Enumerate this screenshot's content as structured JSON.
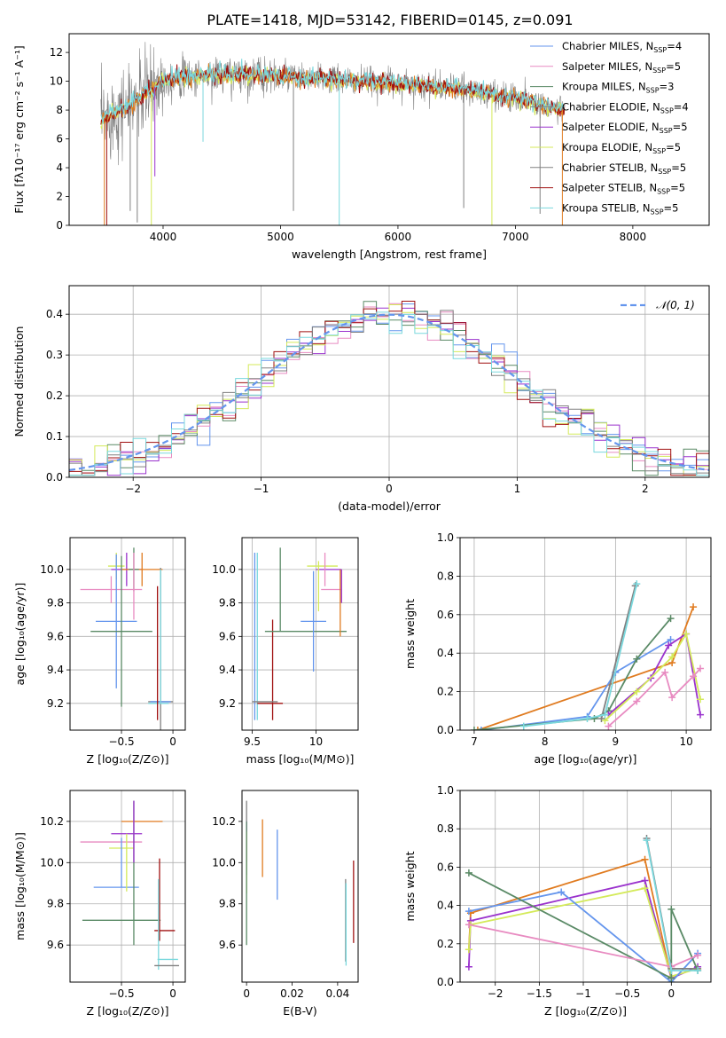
{
  "title": "PLATE=1418, MJD=53142, FIBERID=0145, z=0.091",
  "palette": {
    "blue": "#6495ed",
    "pink": "#e88bc1",
    "green": "#5a8a66",
    "purple": "#9a32cd",
    "yellow": "#d4ea5a",
    "orange": "#e07b20",
    "gray": "#808080",
    "red": "#a01010",
    "cyan": "#7ad8dd"
  },
  "chart_data": [
    {
      "id": "spectrum",
      "type": "line",
      "xlabel": "wavelength [Angstrom, rest frame]",
      "ylabel": "Flux [fλ10⁻¹⁷ erg cm⁻² s⁻¹ A⁻¹]",
      "xlim": [
        3200,
        8650
      ],
      "ylim": [
        0,
        13.3
      ],
      "xticks": [
        4000,
        5000,
        6000,
        7000,
        8000
      ],
      "yticks": [
        0,
        2,
        4,
        6,
        8,
        10,
        12
      ],
      "legend_position": "right",
      "legend": [
        {
          "label": "Chabrier MILES, N",
          "sub": "SSP",
          "eq": "=4",
          "color": "blue"
        },
        {
          "label": "Salpeter MILES, N",
          "sub": "SSP",
          "eq": "=5",
          "color": "pink"
        },
        {
          "label": "Kroupa MILES, N",
          "sub": "SSP",
          "eq": "=3",
          "color": "green"
        },
        {
          "label": "Chabrier ELODIE, N",
          "sub": "SSP",
          "eq": "=4",
          "color": "gray"
        },
        {
          "label": "Salpeter ELODIE, N",
          "sub": "SSP",
          "eq": "=5",
          "color": "purple"
        },
        {
          "label": "Kroupa ELODIE, N",
          "sub": "SSP",
          "eq": "=5",
          "color": "yellow"
        },
        {
          "label": "Chabrier STELIB, N",
          "sub": "SSP",
          "eq": "=5",
          "color": "gray"
        },
        {
          "label": "Salpeter STELIB, N",
          "sub": "SSP",
          "eq": "=5",
          "color": "red"
        },
        {
          "label": "Kroupa STELIB, N",
          "sub": "SSP",
          "eq": "=5",
          "color": "cyan"
        }
      ],
      "continuum": [
        [
          3470,
          7.2
        ],
        [
          3530,
          7.6
        ],
        [
          3600,
          7.9
        ],
        [
          3700,
          8.2
        ],
        [
          3800,
          8.9
        ],
        [
          3900,
          9.4
        ],
        [
          4000,
          10.1
        ],
        [
          4200,
          10.3
        ],
        [
          4400,
          10.4
        ],
        [
          4700,
          10.5
        ],
        [
          5000,
          10.3
        ],
        [
          5300,
          10.2
        ],
        [
          5600,
          10.0
        ],
        [
          5900,
          9.9
        ],
        [
          6200,
          9.7
        ],
        [
          6500,
          9.5
        ],
        [
          6800,
          9.1
        ],
        [
          7100,
          8.7
        ],
        [
          7300,
          8.2
        ],
        [
          7420,
          8.0
        ]
      ],
      "dips": [
        {
          "x": 3500,
          "y": 0,
          "color": "orange"
        },
        {
          "x": 3520,
          "y": 0,
          "color": "red"
        },
        {
          "x": 3720,
          "y": 1.0,
          "color": "gray"
        },
        {
          "x": 3780,
          "y": 0.2,
          "color": "gray"
        },
        {
          "x": 3900,
          "y": 0,
          "color": "yellow"
        },
        {
          "x": 3930,
          "y": 3.4,
          "color": "purple"
        },
        {
          "x": 4340,
          "y": 5.8,
          "color": "cyan"
        },
        {
          "x": 5110,
          "y": 1.0,
          "color": "gray"
        },
        {
          "x": 5500,
          "y": 0,
          "color": "cyan"
        },
        {
          "x": 6560,
          "y": 1.2,
          "color": "gray"
        },
        {
          "x": 6800,
          "y": 0,
          "color": "yellow"
        },
        {
          "x": 7210,
          "y": 0.8,
          "color": "gray"
        },
        {
          "x": 7400,
          "y": 0,
          "color": "orange"
        }
      ]
    },
    {
      "id": "residuals",
      "type": "histogram",
      "xlabel": "(data-model)/error",
      "ylabel": "Normed distribution",
      "xlim": [
        -2.5,
        2.5
      ],
      "ylim": [
        0,
        0.47
      ],
      "xticks": [
        -2,
        -1,
        0,
        1,
        2
      ],
      "yticks": [
        0.0,
        0.1,
        0.2,
        0.3,
        0.4
      ],
      "grid": true,
      "bin_width": 0.1,
      "legend_position": "top-right",
      "legend": [
        {
          "label": "𝒩(0, 1)",
          "color": "blue",
          "dashed": true
        }
      ],
      "histogram_colors": [
        "blue",
        "pink",
        "green",
        "purple",
        "yellow",
        "red",
        "gray",
        "cyan"
      ]
    },
    {
      "id": "age_vs_Z",
      "type": "errorbar",
      "xlabel": "Z [log₁₀(Z/Z⊙)]",
      "ylabel": "age  [log₁₀(age/yr)]",
      "xlim": [
        -1.0,
        0.12
      ],
      "ylim": [
        9.04,
        10.19
      ],
      "xticks": [
        -0.5,
        0.0
      ],
      "yticks": [
        9.2,
        9.4,
        9.6,
        9.8,
        10.0
      ],
      "grid": true,
      "points": [
        {
          "x": -0.55,
          "y": 10.02,
          "xerr": 0.08,
          "yerr": 0.08,
          "color": "yellow"
        },
        {
          "x": -0.45,
          "y": 10.0,
          "xerr": 0.15,
          "yerr": 0.1,
          "color": "purple"
        },
        {
          "x": -0.3,
          "y": 10.0,
          "xerr": 0.2,
          "yerr": 0.1,
          "color": "orange"
        },
        {
          "x": -0.38,
          "y": 10.0,
          "xerr": 0.05,
          "yerr": 0.13,
          "color": "green"
        },
        {
          "x": -0.6,
          "y": 9.88,
          "xerr": 0.3,
          "yerr": 0.08,
          "color": "pink"
        },
        {
          "x": -0.55,
          "y": 9.69,
          "xerr": 0.2,
          "yerr": 0.4,
          "color": "blue"
        },
        {
          "x": -0.5,
          "y": 9.63,
          "xerr": 0.3,
          "yerr": 0.45,
          "color": "green"
        },
        {
          "x": -0.38,
          "y": 9.9,
          "xerr": 0.0,
          "yerr": 0.2,
          "color": "pink"
        },
        {
          "x": -0.12,
          "y": 9.21,
          "xerr": 0.12,
          "yerr": 0.8,
          "color": "gray"
        },
        {
          "x": -0.12,
          "y": 9.21,
          "xerr": 0.1,
          "yerr": 0.0,
          "color": "blue"
        },
        {
          "x": -0.14,
          "y": 9.2,
          "xerr": 0.1,
          "yerr": 0.0,
          "color": "cyan"
        },
        {
          "x": -0.15,
          "y": 9.5,
          "xerr": 0.0,
          "yerr": 0.4,
          "color": "red"
        },
        {
          "x": -0.12,
          "y": 9.6,
          "xerr": 0.0,
          "yerr": 0.4,
          "color": "cyan"
        }
      ]
    },
    {
      "id": "age_vs_mass",
      "type": "errorbar",
      "xlabel": "mass [log₁₀(M/M⊙)]",
      "ylabel": "",
      "xlim": [
        9.42,
        10.33
      ],
      "ylim": [
        9.04,
        10.19
      ],
      "xticks": [
        9.5,
        10.0
      ],
      "yticks": [
        9.2,
        9.4,
        9.6,
        9.8,
        10.0
      ],
      "grid": true,
      "points": [
        {
          "x": 9.52,
          "y": 9.6,
          "xerr": 0.0,
          "yerr": 0.5,
          "color": "blue"
        },
        {
          "x": 9.54,
          "y": 9.6,
          "xerr": 0.0,
          "yerr": 0.5,
          "color": "cyan"
        },
        {
          "x": 9.66,
          "y": 9.4,
          "xerr": 0.0,
          "yerr": 0.3,
          "color": "red"
        },
        {
          "x": 9.6,
          "y": 9.21,
          "xerr": 0.1,
          "yerr": 0.0,
          "color": "gray"
        },
        {
          "x": 9.64,
          "y": 9.2,
          "xerr": 0.1,
          "yerr": 0.0,
          "color": "red"
        },
        {
          "x": 9.72,
          "y": 9.88,
          "xerr": 0.0,
          "yerr": 0.25,
          "color": "green"
        },
        {
          "x": 9.92,
          "y": 9.63,
          "xerr": 0.32,
          "yerr": 0.0,
          "color": "green"
        },
        {
          "x": 10.05,
          "y": 10.02,
          "xerr": 0.12,
          "yerr": 0.0,
          "color": "yellow"
        },
        {
          "x": 10.1,
          "y": 10.0,
          "xerr": 0.1,
          "yerr": 0.0,
          "color": "purple"
        },
        {
          "x": 10.12,
          "y": 9.88,
          "xerr": 0.08,
          "yerr": 0.0,
          "color": "pink"
        },
        {
          "x": 10.07,
          "y": 10.0,
          "xerr": 0.0,
          "yerr": 0.1,
          "color": "pink"
        },
        {
          "x": 9.98,
          "y": 9.69,
          "xerr": 0.1,
          "yerr": 0.3,
          "color": "blue"
        },
        {
          "x": 10.19,
          "y": 9.8,
          "xerr": 0.0,
          "yerr": 0.2,
          "color": "orange"
        },
        {
          "x": 10.02,
          "y": 9.9,
          "xerr": 0.0,
          "yerr": 0.15,
          "color": "yellow"
        },
        {
          "x": 10.2,
          "y": 9.9,
          "xerr": 0.0,
          "yerr": 0.1,
          "color": "purple"
        }
      ]
    },
    {
      "id": "weight_vs_age",
      "type": "line",
      "xlabel": "age  [log₁₀(age/yr)]",
      "ylabel": "mass weight",
      "xlim": [
        6.8,
        10.35
      ],
      "ylim": [
        0,
        1.0
      ],
      "xticks": [
        7,
        8,
        9,
        10
      ],
      "yticks": [
        0.0,
        0.2,
        0.4,
        0.6,
        0.8,
        1.0
      ],
      "grid": true,
      "series": [
        {
          "color": "orange",
          "x": [
            7.05,
            9.8,
            10.1
          ],
          "y": [
            0.0,
            0.35,
            0.64
          ]
        },
        {
          "color": "blue",
          "x": [
            7.1,
            8.6,
            9.0,
            9.78
          ],
          "y": [
            0.0,
            0.07,
            0.3,
            0.47
          ]
        },
        {
          "color": "green",
          "x": [
            7.0,
            8.7,
            8.9,
            9.3,
            9.78
          ],
          "y": [
            0.0,
            0.06,
            0.1,
            0.37,
            0.58
          ]
        },
        {
          "color": "purple",
          "x": [
            8.9,
            9.5,
            9.75,
            10.0,
            10.2
          ],
          "y": [
            0.08,
            0.27,
            0.44,
            0.5,
            0.08
          ]
        },
        {
          "color": "yellow",
          "x": [
            8.85,
            9.3,
            9.8,
            10.0,
            10.2
          ],
          "y": [
            0.05,
            0.2,
            0.38,
            0.5,
            0.16
          ]
        },
        {
          "color": "pink",
          "x": [
            8.9,
            9.3,
            9.7,
            9.8,
            10.1,
            10.2
          ],
          "y": [
            0.02,
            0.15,
            0.3,
            0.17,
            0.28,
            0.32
          ]
        },
        {
          "color": "gray",
          "x": [
            8.8,
            9.28
          ],
          "y": [
            0.06,
            0.75
          ]
        },
        {
          "color": "cyan",
          "x": [
            7.7,
            8.6,
            8.85,
            9.3
          ],
          "y": [
            0.02,
            0.06,
            0.08,
            0.76
          ]
        }
      ]
    },
    {
      "id": "mass_vs_Z",
      "type": "errorbar",
      "xlabel": "Z [log₁₀(Z/Z⊙)]",
      "ylabel": "mass [log₁₀(M/M⊙)]",
      "xlim": [
        -1.0,
        0.12
      ],
      "ylim": [
        9.42,
        10.35
      ],
      "xticks": [
        -0.5,
        0.0
      ],
      "yticks": [
        9.6,
        9.8,
        10.0,
        10.2
      ],
      "grid": true,
      "points": [
        {
          "x": -0.3,
          "y": 10.2,
          "xerr": 0.2,
          "yerr": 0.0,
          "color": "orange"
        },
        {
          "x": -0.45,
          "y": 10.14,
          "xerr": 0.15,
          "yerr": 0.0,
          "color": "purple"
        },
        {
          "x": -0.6,
          "y": 10.1,
          "xerr": 0.3,
          "yerr": 0.0,
          "color": "pink"
        },
        {
          "x": -0.5,
          "y": 10.07,
          "xerr": 0.12,
          "yerr": 0.0,
          "color": "yellow"
        },
        {
          "x": -0.55,
          "y": 9.88,
          "xerr": 0.22,
          "yerr": 0.0,
          "color": "blue"
        },
        {
          "x": -0.5,
          "y": 9.72,
          "xerr": 0.38,
          "yerr": 0.0,
          "color": "green"
        },
        {
          "x": -0.38,
          "y": 9.95,
          "xerr": 0.0,
          "yerr": 0.35,
          "color": "green"
        },
        {
          "x": -0.38,
          "y": 10.15,
          "xerr": 0.0,
          "yerr": 0.15,
          "color": "purple"
        },
        {
          "x": -0.5,
          "y": 10.0,
          "xerr": 0.0,
          "yerr": 0.12,
          "color": "blue"
        },
        {
          "x": -0.45,
          "y": 10.0,
          "xerr": 0.0,
          "yerr": 0.14,
          "color": "yellow"
        },
        {
          "x": -0.13,
          "y": 9.82,
          "xerr": 0.0,
          "yerr": 0.2,
          "color": "red"
        },
        {
          "x": -0.08,
          "y": 9.67,
          "xerr": 0.1,
          "yerr": 0.0,
          "color": "red"
        },
        {
          "x": -0.14,
          "y": 9.7,
          "xerr": 0.0,
          "yerr": 0.22,
          "color": "cyan"
        },
        {
          "x": -0.05,
          "y": 9.53,
          "xerr": 0.1,
          "yerr": 0.0,
          "color": "cyan"
        },
        {
          "x": -0.06,
          "y": 9.5,
          "xerr": 0.12,
          "yerr": 0.0,
          "color": "gray"
        }
      ]
    },
    {
      "id": "mass_vs_ebv",
      "type": "errorbar",
      "xlabel": "E(B-V)",
      "ylabel": "",
      "xlim": [
        -0.002,
        0.049
      ],
      "ylim": [
        9.42,
        10.35
      ],
      "xticks": [
        0.0,
        0.02,
        0.04
      ],
      "yticks": [
        9.6,
        9.8,
        10.0,
        10.2
      ],
      "grid": false,
      "points": [
        {
          "x": 0.0,
          "y": 10.12,
          "xerr": 0.0,
          "yerr": 0.18,
          "color": "gray"
        },
        {
          "x": 0.0,
          "y": 10.1,
          "xerr": 0.0,
          "yerr": 0.1,
          "color": "purple"
        },
        {
          "x": 0.0,
          "y": 10.0,
          "xerr": 0.0,
          "yerr": 0.15,
          "color": "yellow"
        },
        {
          "x": 0.0,
          "y": 9.9,
          "xerr": 0.0,
          "yerr": 0.3,
          "color": "green"
        },
        {
          "x": 0.007,
          "y": 10.07,
          "xerr": 0.0,
          "yerr": 0.14,
          "color": "orange"
        },
        {
          "x": 0.0135,
          "y": 9.99,
          "xerr": 0.0,
          "yerr": 0.17,
          "color": "blue"
        },
        {
          "x": 0.0435,
          "y": 9.72,
          "xerr": 0.0,
          "yerr": 0.2,
          "color": "gray"
        },
        {
          "x": 0.0437,
          "y": 9.7,
          "xerr": 0.0,
          "yerr": 0.2,
          "color": "cyan"
        },
        {
          "x": 0.047,
          "y": 9.81,
          "xerr": 0.0,
          "yerr": 0.2,
          "color": "red"
        }
      ]
    },
    {
      "id": "weight_vs_Z",
      "type": "line",
      "xlabel": "Z [log₁₀(Z/Z⊙)]",
      "ylabel": "mass weight",
      "xlim": [
        -2.4,
        0.45
      ],
      "ylim": [
        0,
        1.0
      ],
      "xticks": [
        -2.0,
        -1.5,
        -1.0,
        -0.5,
        0.0
      ],
      "yticks": [
        0.0,
        0.2,
        0.4,
        0.6,
        0.8,
        1.0
      ],
      "grid": true,
      "series": [
        {
          "color": "orange",
          "x": [
            -2.3,
            -2.28,
            -0.3,
            0.0
          ],
          "y": [
            0.17,
            0.36,
            0.64,
            0.02
          ]
        },
        {
          "color": "purple",
          "x": [
            -2.3,
            -2.28,
            -0.3,
            0.0,
            0.3
          ],
          "y": [
            0.08,
            0.32,
            0.53,
            0.02,
            0.08
          ]
        },
        {
          "color": "yellow",
          "x": [
            -2.3,
            -2.28,
            -0.3,
            0.0,
            0.3
          ],
          "y": [
            0.17,
            0.3,
            0.49,
            0.03,
            0.07
          ]
        },
        {
          "color": "blue",
          "x": [
            -2.3,
            -1.25,
            0.0,
            0.3
          ],
          "y": [
            0.37,
            0.47,
            0.0,
            0.15
          ]
        },
        {
          "color": "green",
          "x": [
            -2.3,
            0.0,
            0.0,
            0.3
          ],
          "y": [
            0.57,
            0.02,
            0.38,
            0.06
          ]
        },
        {
          "color": "pink",
          "x": [
            -2.3,
            0.0,
            0.3
          ],
          "y": [
            0.3,
            0.08,
            0.14
          ]
        },
        {
          "color": "gray",
          "x": [
            -0.28,
            0.0,
            0.3
          ],
          "y": [
            0.75,
            0.07,
            0.07
          ]
        },
        {
          "color": "cyan",
          "x": [
            -0.28,
            0.0,
            0.3
          ],
          "y": [
            0.74,
            0.06,
            0.06
          ]
        }
      ]
    }
  ]
}
